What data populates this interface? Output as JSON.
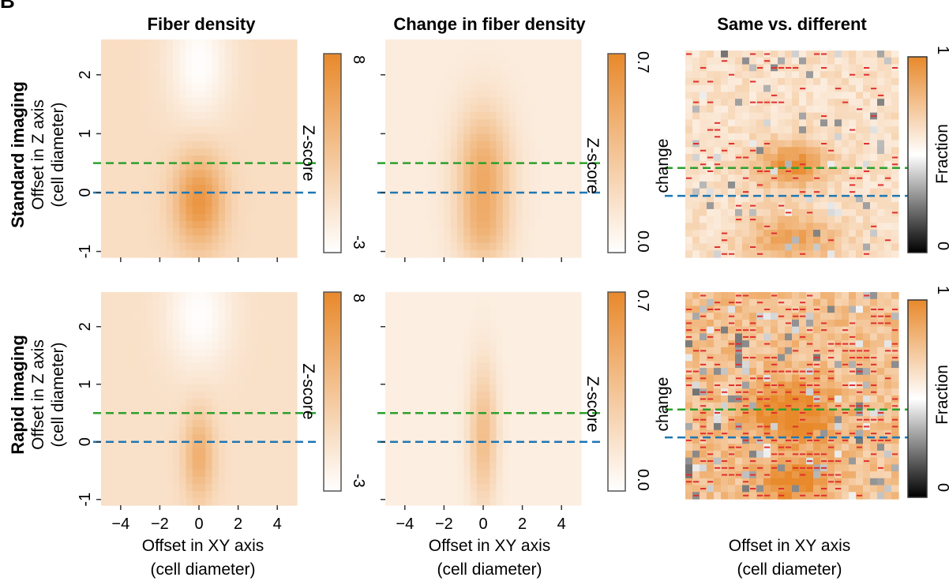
{
  "panel_letter": "B",
  "column_titles": [
    "Fiber density",
    "Change in fiber density",
    "Same vs. different"
  ],
  "row_titles": [
    "Standard imaging",
    "Rapid imaging"
  ],
  "y_axis_label": [
    "Offset in Z axis",
    "(cell diameter)"
  ],
  "x_axis_label": [
    "Offset in XY axis",
    "(cell diameter)"
  ],
  "colorbars": [
    {
      "label": "Z-score",
      "max_label": "8",
      "min_label": "-3"
    },
    {
      "label": [
        "Z-score",
        "change"
      ],
      "max_label": "0.7",
      "min_label": "0.0"
    },
    {
      "label": "Fraction",
      "max_label": "1",
      "min_label": "0"
    }
  ],
  "colors": {
    "scale_low": "#ffffff",
    "scale_high": "#e8892b",
    "gray_low": "#000000",
    "gray_mid": "#ffffff",
    "reference_line_upper": "#2ca02c",
    "reference_line_lower": "#1f77b4",
    "marker": "#e03030"
  },
  "chart_data": [
    {
      "type": "heatmap",
      "row": "Standard imaging",
      "column": "Fiber density",
      "x_ticks": [
        -4,
        -2,
        0,
        2,
        4
      ],
      "y_ticks": [
        -1,
        0,
        1,
        2
      ],
      "xlim": [
        -5,
        5
      ],
      "ylim": [
        -1.1,
        2.6
      ],
      "color_range": [
        -3,
        8
      ],
      "reference_lines_y": [
        0.5,
        0
      ]
    },
    {
      "type": "heatmap",
      "row": "Standard imaging",
      "column": "Change in fiber density",
      "x_ticks": [
        -4,
        -2,
        0,
        2,
        4
      ],
      "y_ticks": [
        -1,
        0,
        1,
        2
      ],
      "xlim": [
        -5,
        5
      ],
      "ylim": [
        -1.1,
        2.6
      ],
      "color_range": [
        0.0,
        0.7
      ],
      "reference_lines_y": [
        0.5,
        0
      ]
    },
    {
      "type": "heatmap",
      "row": "Standard imaging",
      "column": "Same vs. different",
      "xlim": [
        -5,
        5
      ],
      "ylim": [
        -1.1,
        2.6
      ],
      "color_range": [
        0,
        1
      ],
      "reference_lines_y": [
        0.5,
        0
      ]
    },
    {
      "type": "heatmap",
      "row": "Rapid imaging",
      "column": "Fiber density",
      "x_ticks": [
        -4,
        -2,
        0,
        2,
        4
      ],
      "y_ticks": [
        -1,
        0,
        1,
        2
      ],
      "xlim": [
        -5,
        5
      ],
      "ylim": [
        -1.1,
        2.6
      ],
      "color_range": [
        -3,
        8
      ],
      "reference_lines_y": [
        0.5,
        0
      ]
    },
    {
      "type": "heatmap",
      "row": "Rapid imaging",
      "column": "Change in fiber density",
      "x_ticks": [
        -4,
        -2,
        0,
        2,
        4
      ],
      "y_ticks": [
        -1,
        0,
        1,
        2
      ],
      "xlim": [
        -5,
        5
      ],
      "ylim": [
        -1.1,
        2.6
      ],
      "color_range": [
        0.0,
        0.7
      ],
      "reference_lines_y": [
        0.5,
        0
      ]
    },
    {
      "type": "heatmap",
      "row": "Rapid imaging",
      "column": "Same vs. different",
      "xlim": [
        -5,
        5
      ],
      "ylim": [
        -1.1,
        2.6
      ],
      "color_range": [
        0,
        1
      ],
      "reference_lines_y": [
        0.5,
        0
      ]
    }
  ]
}
